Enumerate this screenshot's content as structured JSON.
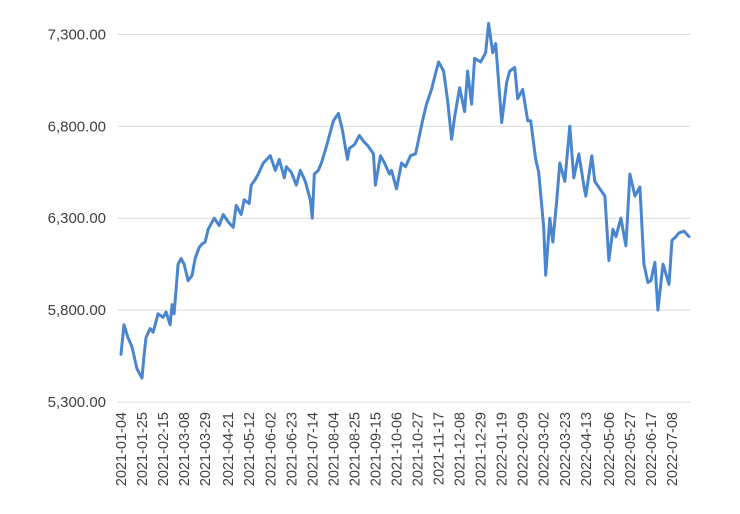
{
  "chart_data": {
    "type": "line",
    "title": "",
    "xlabel": "",
    "ylabel": "",
    "grid": true,
    "legend": "none",
    "ylim": [
      5300,
      7400
    ],
    "yticks": [
      "5,300.00",
      "5,800.00",
      "6,300.00",
      "6,800.00",
      "7,300.00"
    ],
    "xticks": [
      "2021-01-04",
      "2021-01-25",
      "2021-02-15",
      "2021-03-08",
      "2021-03-29",
      "2021-04-21",
      "2021-05-12",
      "2021-06-02",
      "2021-06-23",
      "2021-07-14",
      "2021-08-04",
      "2021-08-25",
      "2021-09-15",
      "2021-10-06",
      "2021-10-27",
      "2021-11-17",
      "2021-12-08",
      "2021-12-29",
      "2022-01-19",
      "2022-02-09",
      "2022-03-02",
      "2022-03-23",
      "2022-04-13",
      "2022-05-06",
      "2022-05-27",
      "2022-06-17",
      "2022-07-08"
    ],
    "series": [
      {
        "color": "#4a86cf",
        "x": [
          "2021-01-04",
          "2021-01-07",
          "2021-01-11",
          "2021-01-15",
          "2021-01-20",
          "2021-01-25",
          "2021-01-27",
          "2021-01-29",
          "2021-02-02",
          "2021-02-05",
          "2021-02-10",
          "2021-02-15",
          "2021-02-18",
          "2021-02-22",
          "2021-02-24",
          "2021-02-26",
          "2021-03-02",
          "2021-03-05",
          "2021-03-08",
          "2021-03-12",
          "2021-03-16",
          "2021-03-19",
          "2021-03-23",
          "2021-03-26",
          "2021-03-29",
          "2021-04-01",
          "2021-04-07",
          "2021-04-12",
          "2021-04-16",
          "2021-04-21",
          "2021-04-26",
          "2021-04-29",
          "2021-05-04",
          "2021-05-07",
          "2021-05-12",
          "2021-05-14",
          "2021-05-18",
          "2021-05-21",
          "2021-05-26",
          "2021-06-02",
          "2021-06-07",
          "2021-06-11",
          "2021-06-16",
          "2021-06-18",
          "2021-06-23",
          "2021-06-28",
          "2021-07-02",
          "2021-07-07",
          "2021-07-12",
          "2021-07-14",
          "2021-07-16",
          "2021-07-20",
          "2021-07-23",
          "2021-07-28",
          "2021-08-04",
          "2021-08-09",
          "2021-08-13",
          "2021-08-18",
          "2021-08-20",
          "2021-08-25",
          "2021-08-30",
          "2021-09-03",
          "2021-09-08",
          "2021-09-13",
          "2021-09-15",
          "2021-09-20",
          "2021-09-24",
          "2021-09-29",
          "2021-10-01",
          "2021-10-06",
          "2021-10-11",
          "2021-10-15",
          "2021-10-20",
          "2021-10-25",
          "2021-10-27",
          "2021-11-01",
          "2021-11-05",
          "2021-11-10",
          "2021-11-15",
          "2021-11-17",
          "2021-11-22",
          "2021-11-26",
          "2021-11-30",
          "2021-12-03",
          "2021-12-08",
          "2021-12-13",
          "2021-12-16",
          "2021-12-20",
          "2021-12-23",
          "2021-12-29",
          "2022-01-03",
          "2022-01-06",
          "2022-01-10",
          "2022-01-13",
          "2022-01-19",
          "2022-01-24",
          "2022-01-27",
          "2022-02-01",
          "2022-02-04",
          "2022-02-09",
          "2022-02-14",
          "2022-02-17",
          "2022-02-22",
          "2022-02-25",
          "2022-03-02",
          "2022-03-04",
          "2022-03-08",
          "2022-03-11",
          "2022-03-15",
          "2022-03-18",
          "2022-03-23",
          "2022-03-28",
          "2022-04-01",
          "2022-04-06",
          "2022-04-11",
          "2022-04-13",
          "2022-04-19",
          "2022-04-22",
          "2022-04-27",
          "2022-05-02",
          "2022-05-06",
          "2022-05-10",
          "2022-05-13",
          "2022-05-18",
          "2022-05-23",
          "2022-05-27",
          "2022-06-01",
          "2022-06-06",
          "2022-06-10",
          "2022-06-14",
          "2022-06-17",
          "2022-06-21",
          "2022-06-24",
          "2022-06-29",
          "2022-07-05",
          "2022-07-08",
          "2022-07-12",
          "2022-07-15",
          "2022-07-20",
          "2022-07-25"
        ],
        "values": [
          5560,
          5720,
          5650,
          5600,
          5480,
          5430,
          5550,
          5650,
          5700,
          5680,
          5780,
          5760,
          5790,
          5720,
          5830,
          5780,
          6050,
          6080,
          6050,
          5960,
          5990,
          6080,
          6140,
          6160,
          6170,
          6240,
          6300,
          6260,
          6320,
          6280,
          6250,
          6370,
          6320,
          6400,
          6380,
          6480,
          6510,
          6540,
          6600,
          6640,
          6560,
          6620,
          6520,
          6580,
          6550,
          6480,
          6560,
          6500,
          6400,
          6300,
          6540,
          6560,
          6600,
          6690,
          6830,
          6870,
          6780,
          6620,
          6680,
          6700,
          6750,
          6720,
          6690,
          6650,
          6480,
          6640,
          6600,
          6540,
          6560,
          6460,
          6600,
          6580,
          6640,
          6650,
          6700,
          6830,
          6920,
          7000,
          7110,
          7150,
          7100,
          6940,
          6730,
          6850,
          7010,
          6880,
          7100,
          6920,
          7170,
          7150,
          7200,
          7360,
          7200,
          7250,
          6820,
          7040,
          7100,
          7120,
          6950,
          7000,
          6830,
          6830,
          6620,
          6550,
          6250,
          5990,
          6300,
          6170,
          6400,
          6600,
          6500,
          6800,
          6520,
          6650,
          6480,
          6420,
          6640,
          6500,
          6460,
          6420,
          6070,
          6240,
          6200,
          6300,
          6150,
          6540,
          6420,
          6470,
          6050,
          5950,
          5960,
          6060,
          5800,
          6050,
          5940,
          6180,
          6200,
          6220,
          6230,
          6200
        ]
      }
    ]
  }
}
